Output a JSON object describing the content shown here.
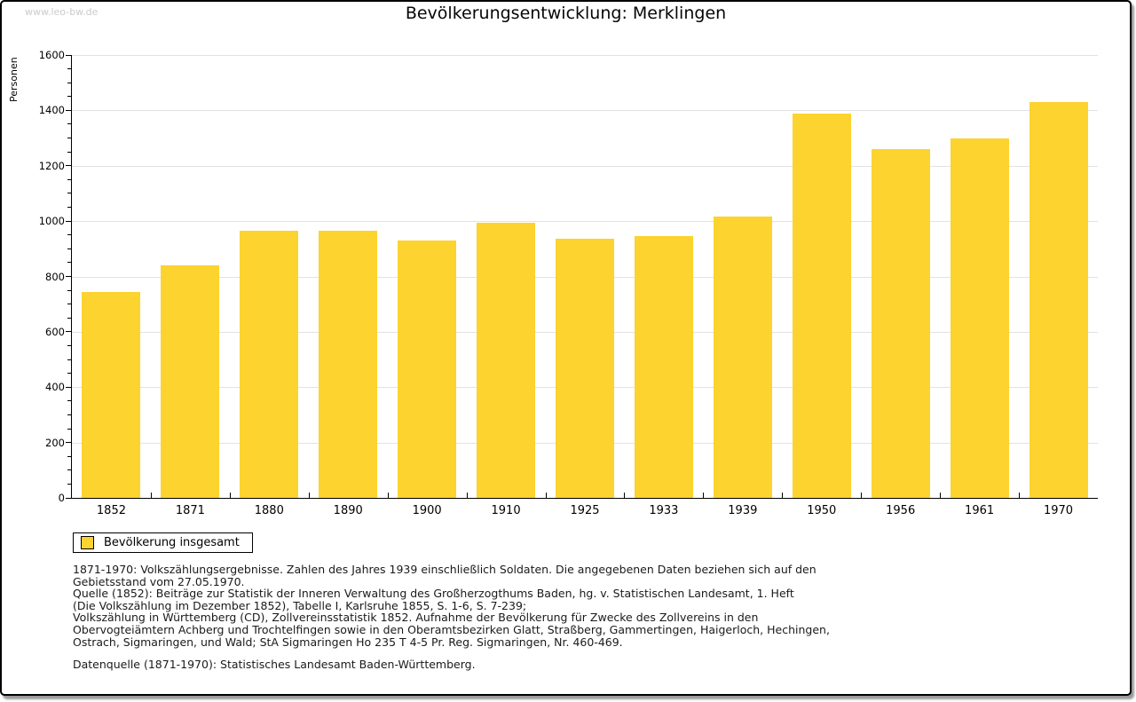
{
  "watermark": "www.leo-bw.de",
  "title": "Bevölkerungsentwicklung: Merklingen",
  "chart_data": {
    "type": "bar",
    "title": "Bevölkerungsentwicklung: Merklingen",
    "xlabel": "",
    "ylabel": "Personen",
    "categories": [
      "1852",
      "1871",
      "1880",
      "1890",
      "1900",
      "1910",
      "1925",
      "1933",
      "1939",
      "1950",
      "1956",
      "1961",
      "1970"
    ],
    "values": [
      745,
      840,
      965,
      965,
      930,
      995,
      935,
      945,
      1015,
      1390,
      1260,
      1300,
      1430
    ],
    "ylim": [
      0,
      1600
    ],
    "ytick_step": 200,
    "y_minor_tick_step": 50,
    "grid": true,
    "bar_color": "#FCD32F",
    "grid_color": "#E2E2E2",
    "legend_position": "bottom-left"
  },
  "legend": {
    "label": "Bevölkerung insgesamt",
    "swatch_color": "#FCD32F"
  },
  "footnotes": {
    "lines": [
      "1871-1970: Volkszählungsergebnisse. Zahlen des Jahres 1939 einschließlich Soldaten. Die angegebenen Daten beziehen sich auf den",
      "Gebietsstand vom 27.05.1970.",
      "Quelle (1852): Beiträge zur Statistik der Inneren Verwaltung des Großherzogthums Baden, hg. v. Statistischen Landesamt, 1. Heft",
      "(Die Volkszählung im Dezember 1852), Tabelle I, Karlsruhe 1855, S. 1-6, S. 7-239;",
      "Volkszählung in Württemberg (CD), Zollvereinsstatistik 1852. Aufnahme der Bevölkerung für Zwecke des Zollvereins in den",
      "Obervogteiämtern Achberg und Trochtelfingen sowie in den Oberamtsbezirken Glatt, Straßberg, Gammertingen, Haigerloch, Hechingen,",
      "Ostrach, Sigmaringen, und Wald; StA Sigmaringen Ho 235 T 4-5 Pr. Reg. Sigmaringen, Nr. 460-469."
    ],
    "datasource": "Datenquelle (1871-1970): Statistisches Landesamt Baden-Württemberg."
  }
}
